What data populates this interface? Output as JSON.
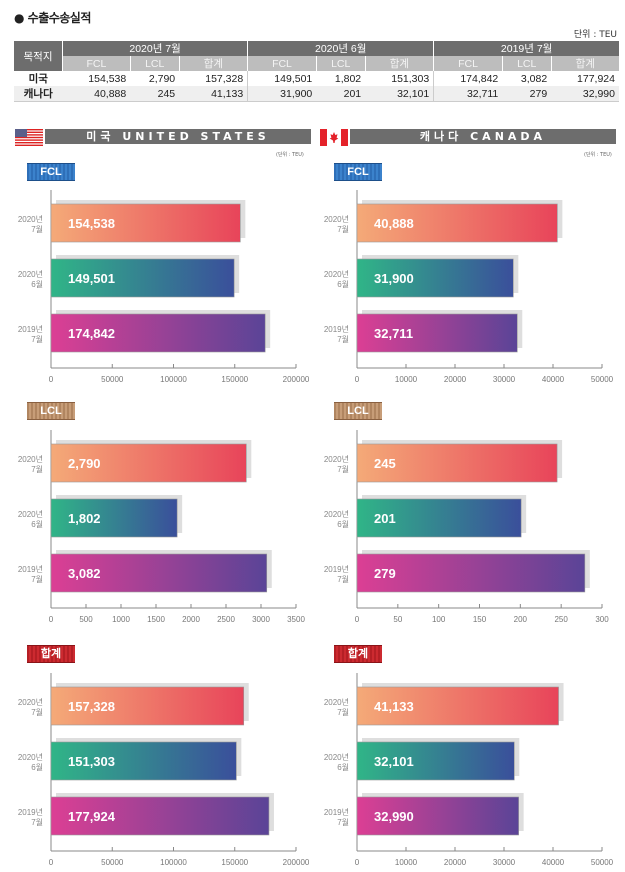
{
  "header": {
    "title": "● 수출수송실적",
    "unit": "단위 : TEU"
  },
  "summary_table": {
    "dest_header": "목적지",
    "periods": [
      "2020년 7월",
      "2020년 6월",
      "2019년 7월"
    ],
    "sub_headers": [
      "FCL",
      "LCL",
      "합계"
    ],
    "rows": [
      {
        "name": "미국",
        "values": [
          "154,538",
          "2,790",
          "157,328",
          "149,501",
          "1,802",
          "151,303",
          "174,842",
          "3,082",
          "177,924"
        ]
      },
      {
        "name": "캐나다",
        "values": [
          "40,888",
          "245",
          "41,133",
          "31,900",
          "201",
          "32,101",
          "32,711",
          "279",
          "32,990"
        ]
      }
    ]
  },
  "countries": [
    {
      "key": "us",
      "banner": "미국 UNITED STATES",
      "flag": "us-flag",
      "unit": "(단위 : TEU)"
    },
    {
      "key": "ca",
      "banner": "캐나다 CANADA",
      "flag": "canada-flag",
      "unit": "(단위 : TEU)"
    }
  ],
  "colors": {
    "row1": [
      "#f4aa78",
      "#e8445a"
    ],
    "row2": [
      "#30b587",
      "#3a4f9b"
    ],
    "row3": [
      "#dc3f94",
      "#5a4497"
    ],
    "shadow": "#dedede",
    "axis": "#888888",
    "banner": "#6d6d6d"
  },
  "chart_data": [
    {
      "type": "bar",
      "country": "미국",
      "title": "FCL",
      "badge": "fcl",
      "categories": [
        [
          "2020년",
          "7월"
        ],
        [
          "2020년",
          "6월"
        ],
        [
          "2019년",
          "7월"
        ]
      ],
      "values": [
        154538,
        149501,
        174842
      ],
      "labels": [
        "154,538",
        "149,501",
        "174,842"
      ],
      "xlim": [
        0,
        200000
      ],
      "ticks": [
        0,
        50000,
        100000,
        150000,
        200000
      ],
      "orientation": "horizontal"
    },
    {
      "type": "bar",
      "country": "캐나다",
      "title": "FCL",
      "badge": "fcl",
      "categories": [
        [
          "2020년",
          "7월"
        ],
        [
          "2020년",
          "6월"
        ],
        [
          "2019년",
          "7월"
        ]
      ],
      "values": [
        40888,
        31900,
        32711
      ],
      "labels": [
        "40,888",
        "31,900",
        "32,711"
      ],
      "xlim": [
        0,
        50000
      ],
      "ticks": [
        0,
        10000,
        20000,
        30000,
        40000,
        50000
      ],
      "orientation": "horizontal"
    },
    {
      "type": "bar",
      "country": "미국",
      "title": "LCL",
      "badge": "lcl",
      "categories": [
        [
          "2020년",
          "7월"
        ],
        [
          "2020년",
          "6월"
        ],
        [
          "2019년",
          "7월"
        ]
      ],
      "values": [
        2790,
        1802,
        3082
      ],
      "labels": [
        "2,790",
        "1,802",
        "3,082"
      ],
      "xlim": [
        0,
        3500
      ],
      "ticks": [
        0,
        500,
        1000,
        1500,
        2000,
        2500,
        3000,
        3500
      ],
      "orientation": "horizontal"
    },
    {
      "type": "bar",
      "country": "캐나다",
      "title": "LCL",
      "badge": "lcl",
      "categories": [
        [
          "2020년",
          "7월"
        ],
        [
          "2020년",
          "6월"
        ],
        [
          "2019년",
          "7월"
        ]
      ],
      "values": [
        245,
        201,
        279
      ],
      "labels": [
        "245",
        "201",
        "279"
      ],
      "xlim": [
        0,
        300
      ],
      "ticks": [
        0,
        50,
        100,
        150,
        200,
        250,
        300
      ],
      "orientation": "horizontal"
    },
    {
      "type": "bar",
      "country": "미국",
      "title": "합계",
      "badge": "tot",
      "categories": [
        [
          "2020년",
          "7월"
        ],
        [
          "2020년",
          "6월"
        ],
        [
          "2019년",
          "7월"
        ]
      ],
      "values": [
        157328,
        151303,
        177924
      ],
      "labels": [
        "157,328",
        "151,303",
        "177,924"
      ],
      "xlim": [
        0,
        200000
      ],
      "ticks": [
        0,
        50000,
        100000,
        150000,
        200000
      ],
      "orientation": "horizontal"
    },
    {
      "type": "bar",
      "country": "캐나다",
      "title": "합계",
      "badge": "tot",
      "categories": [
        [
          "2020년",
          "7월"
        ],
        [
          "2020년",
          "6월"
        ],
        [
          "2019년",
          "7월"
        ]
      ],
      "values": [
        41133,
        32101,
        32990
      ],
      "labels": [
        "41,133",
        "32,101",
        "32,990"
      ],
      "xlim": [
        0,
        50000
      ],
      "ticks": [
        0,
        10000,
        20000,
        30000,
        40000,
        50000
      ],
      "orientation": "horizontal"
    }
  ]
}
